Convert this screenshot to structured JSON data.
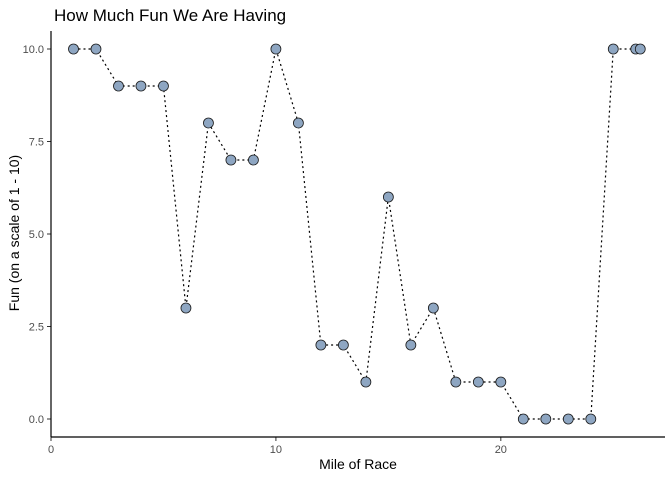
{
  "chart_data": {
    "type": "scatter",
    "title": "How Much Fun We Are Having",
    "xlabel": "Mile of Race",
    "ylabel": "Fun (on a scale of 1 - 10)",
    "xlim": [
      0,
      27.3
    ],
    "ylim": [
      0,
      10
    ],
    "x_ticks": [
      0,
      10,
      20
    ],
    "x_tick_labels": [
      "0",
      "10",
      "20"
    ],
    "y_ticks": [
      0,
      2.5,
      5,
      7.5,
      10
    ],
    "y_tick_labels": [
      "0.0",
      "2.5",
      "5.0",
      "7.5",
      "10.0"
    ],
    "grid": false,
    "legend": "none",
    "connector": "dotted",
    "colors": {
      "point_fill": "#8ea6c2",
      "point_stroke": "#1a1a1a",
      "line": "#000000"
    },
    "series": [
      {
        "x": [
          1,
          2,
          3,
          4,
          5,
          6,
          7,
          8,
          9,
          10,
          11,
          12,
          13,
          14,
          15,
          16,
          17,
          18,
          19,
          20,
          21,
          22,
          23,
          24,
          25,
          26,
          26.2
        ],
        "y": [
          10,
          10,
          9,
          9,
          9,
          3,
          8,
          7,
          7,
          10,
          8,
          2,
          2,
          1,
          6,
          2,
          3,
          1,
          1,
          1,
          0,
          0,
          0,
          0,
          10,
          10,
          10
        ]
      }
    ]
  }
}
